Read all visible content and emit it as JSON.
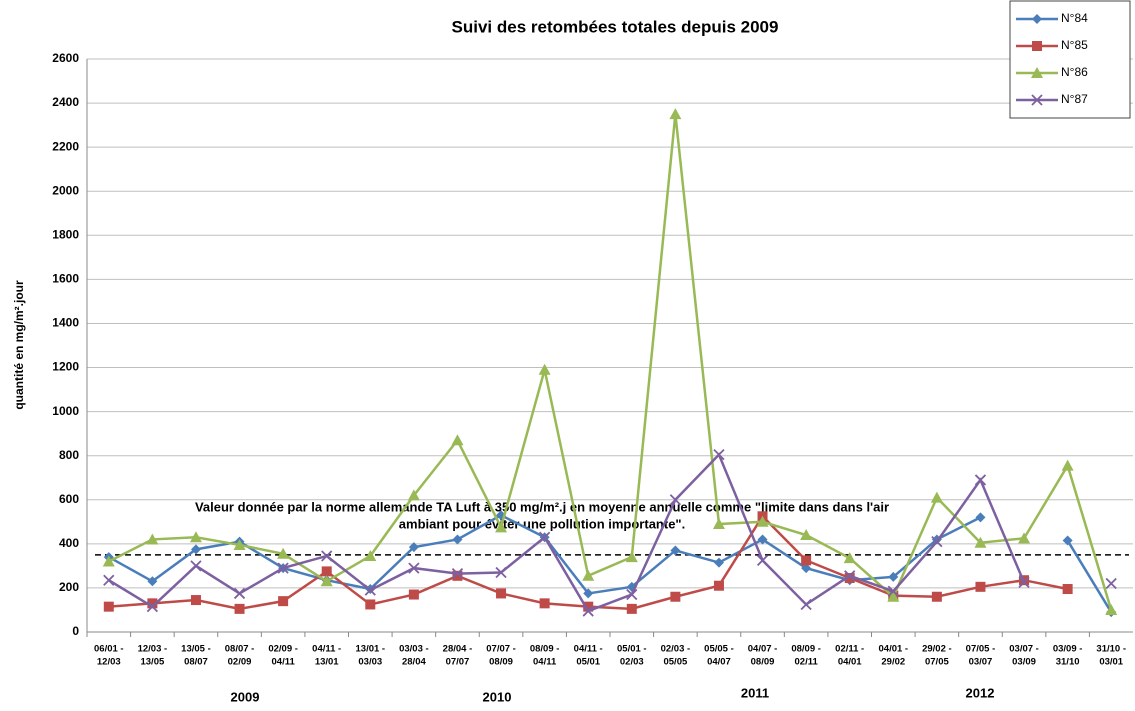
{
  "chart_data": {
    "type": "line",
    "title": "Suivi des retombées totales depuis 2009",
    "ylabel": "quantité en mg/m².jour",
    "categories": [
      [
        "06/01 -",
        "12/03"
      ],
      [
        "12/03 -",
        "13/05"
      ],
      [
        "13/05 -",
        "08/07"
      ],
      [
        "08/07 -",
        "02/09"
      ],
      [
        "02/09 -",
        "04/11"
      ],
      [
        "04/11 -",
        "13/01"
      ],
      [
        "13/01 -",
        "03/03"
      ],
      [
        "03/03 -",
        "28/04"
      ],
      [
        "28/04 -",
        "07/07"
      ],
      [
        "07/07 -",
        "08/09"
      ],
      [
        "08/09 -",
        "04/11"
      ],
      [
        "04/11 -",
        "05/01"
      ],
      [
        "05/01 -",
        "02/03"
      ],
      [
        "02/03 -",
        "05/05"
      ],
      [
        "05/05 -",
        "04/07"
      ],
      [
        "04/07 -",
        "08/09"
      ],
      [
        "08/09 -",
        "02/11"
      ],
      [
        "02/11 -",
        "04/01"
      ],
      [
        "04/01 -",
        "29/02"
      ],
      [
        "29/02 -",
        "07/05"
      ],
      [
        "07/05 -",
        "03/07"
      ],
      [
        "03/07 -",
        "03/09"
      ],
      [
        "03/09 -",
        "31/10"
      ],
      [
        "31/10 -",
        "03/01"
      ]
    ],
    "years": [
      "2009",
      "2010",
      "2011",
      "2012"
    ],
    "series": [
      {
        "name": "N°84",
        "color": "#4a7ebb",
        "marker": "diamond",
        "values": [
          340,
          230,
          375,
          410,
          290,
          235,
          195,
          385,
          420,
          530,
          430,
          175,
          205,
          370,
          315,
          420,
          290,
          235,
          250,
          420,
          520,
          null,
          415,
          90
        ]
      },
      {
        "name": "N°85",
        "color": "#be4b48",
        "marker": "square",
        "values": [
          115,
          130,
          145,
          105,
          140,
          275,
          125,
          170,
          255,
          175,
          130,
          115,
          105,
          160,
          210,
          525,
          325,
          245,
          165,
          160,
          205,
          235,
          195,
          null
        ]
      },
      {
        "name": "N°86",
        "color": "#98b954",
        "marker": "triangle",
        "values": [
          320,
          420,
          430,
          395,
          355,
          230,
          345,
          620,
          870,
          475,
          1190,
          255,
          340,
          2350,
          490,
          500,
          440,
          335,
          160,
          610,
          405,
          425,
          755,
          100
        ]
      },
      {
        "name": "N°87",
        "color": "#7d60a0",
        "marker": "x",
        "values": [
          235,
          115,
          300,
          175,
          290,
          345,
          190,
          290,
          265,
          270,
          430,
          95,
          170,
          600,
          805,
          325,
          125,
          255,
          185,
          410,
          690,
          225,
          null,
          220
        ]
      }
    ],
    "reference_line": 350,
    "annotation": [
      "Valeur donnée par la norme allemande TA Luft à 350 mg/m².j en moyenne annuelle comme \"limite dans dans l'air",
      "ambiant pour éviter une pollution importante\"."
    ],
    "ylim": [
      0,
      2600
    ],
    "yticks": [
      0,
      200,
      400,
      600,
      800,
      1000,
      1200,
      1400,
      1600,
      1800,
      2000,
      2200,
      2400,
      2600
    ],
    "grid": true
  }
}
